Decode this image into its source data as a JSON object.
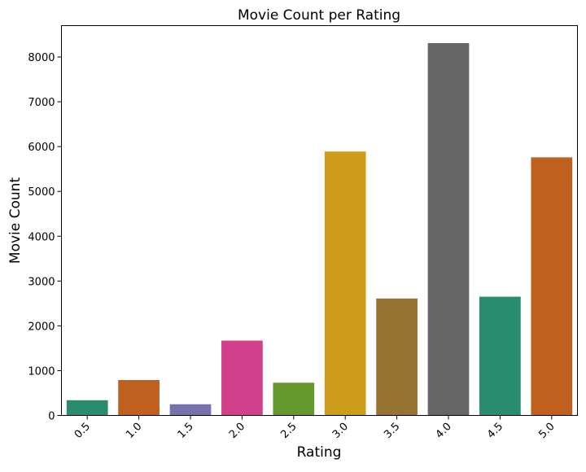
{
  "chart_data": {
    "type": "bar",
    "title": "Movie Count per Rating",
    "xlabel": "Rating",
    "ylabel": "Movie Count",
    "categories": [
      "0.5",
      "1.0",
      "1.5",
      "2.0",
      "2.5",
      "3.0",
      "3.5",
      "4.0",
      "4.5",
      "5.0"
    ],
    "values": [
      340,
      790,
      250,
      1670,
      730,
      5890,
      2610,
      8310,
      2650,
      5760
    ],
    "colors": [
      "#2a8c6e",
      "#c0601e",
      "#7771ad",
      "#d0408c",
      "#66992d",
      "#cd9c1a",
      "#967330",
      "#666666",
      "#2a8c6e",
      "#c0601e"
    ],
    "ylim": [
      0,
      8700
    ],
    "yticks": [
      "0",
      "1000",
      "2000",
      "3000",
      "4000",
      "5000",
      "6000",
      "7000",
      "8000"
    ],
    "grid": false,
    "legend": "none"
  }
}
